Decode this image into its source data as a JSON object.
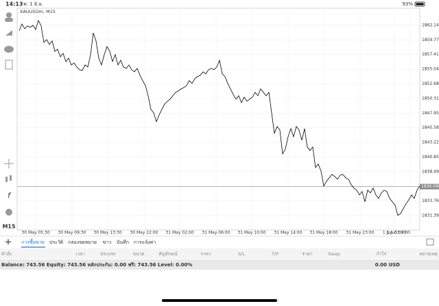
{
  "status_bar": {
    "time": "14:13",
    "date": "พ. 1 มิ.ย.",
    "battery": "93%"
  },
  "chart_data": {
    "type": "line",
    "symbol_label": "XAUUSDm, M15",
    "timeframe": "M15",
    "color": "#000000",
    "grid": true,
    "values": [
      1861.26,
      1862.36,
      1861.59,
      1862.03,
      1861.81,
      1862.14,
      1861.48,
      1862.91,
      1862.03,
      1859.38,
      1859.82,
      1859.05,
      1859.6,
      1857.94,
      1858.27,
      1857.06,
      1857.61,
      1856.28,
      1856.84,
      1855.73,
      1856.06,
      1855.4,
      1854.96,
      1854.85,
      1855.73,
      1855.4,
      1857.39,
      1860.92,
      1859.6,
      1856.84,
      1855.73,
      1857.39,
      1858.71,
      1857.94,
      1856.28,
      1857.39,
      1855.73,
      1856.5,
      1855.4,
      1855.18,
      1855.73,
      1854.96,
      1854.63,
      1855.18,
      1854.07,
      1853.19,
      1852.42,
      1850.76,
      1848.55,
      1848.0,
      1846.56,
      1847.66,
      1848.55,
      1849.43,
      1849.87,
      1850.21,
      1850.76,
      1851.31,
      1851.53,
      1851.86,
      1852.08,
      1852.42,
      1853.19,
      1852.75,
      1853.52,
      1853.85,
      1854.07,
      1854.63,
      1854.29,
      1854.96,
      1855.18,
      1854.96,
      1855.4,
      1856.5,
      1854.29,
      1853.85,
      1852.75,
      1851.86,
      1850.98,
      1850.21,
      1850.76,
      1849.65,
      1850.54,
      1849.87,
      1850.21,
      1850.54,
      1851.31,
      1850.76,
      1851.86,
      1851.31,
      1850.76,
      1851.31,
      1848.0,
      1844.68,
      1845.79,
      1845.23,
      1841.37,
      1842.14,
      1844.13,
      1845.45,
      1844.13,
      1845.79,
      1845.23,
      1843.58,
      1845.45,
      1842.47,
      1841.92,
      1842.47,
      1839.16,
      1839.71,
      1838.6,
      1836.17,
      1836.95,
      1837.5,
      1838.05,
      1837.72,
      1837.28,
      1837.94,
      1838.05,
      1837.5,
      1837.28,
      1836.39,
      1835.84,
      1835.51,
      1834.74,
      1835.29,
      1833.63,
      1835.51,
      1835.07,
      1835.84,
      1834.74,
      1834.18,
      1835.07,
      1835.51,
      1835.29,
      1834.18,
      1833.63,
      1833.08,
      1831.42,
      1831.75,
      1832.53,
      1833.3,
      1833.96,
      1834.74,
      1834.18,
      1835.51,
      1836.17
    ],
    "xlim": [
      0,
      146
    ],
    "xticks": [
      {
        "value": 6,
        "label": "30 May 05:30"
      },
      {
        "value": 19.25,
        "label": "30 May 09:30"
      },
      {
        "value": 32.25,
        "label": "30 May 13:30"
      },
      {
        "value": 45.5,
        "label": "30 May 22:00"
      },
      {
        "value": 58.5,
        "label": "31 May 02:00"
      },
      {
        "value": 71.75,
        "label": "31 May 06:00"
      },
      {
        "value": 84.75,
        "label": "31 May 10:00"
      },
      {
        "value": 98,
        "label": "31 May 14:00"
      },
      {
        "value": 111,
        "label": "31 May 18:00"
      },
      {
        "value": 124.25,
        "label": "31 May 23:00"
      },
      {
        "value": 136.75,
        "label": "1 Jun 03:00"
      },
      {
        "value": 142.5,
        "label": "1 Jun 07:00"
      }
    ],
    "ylim": [
      1829.18,
      1864.9
    ],
    "yticks": [
      {
        "value": 1862.14,
        "label": "1862.140"
      },
      1859.775,
      {
        "value": 1857.41,
        "label": "1857.410"
      },
      1855.045,
      {
        "value": 1852.68,
        "label": "1852.680"
      },
      1850.315,
      {
        "value": 1847.95,
        "label": "1847.950"
      },
      1845.585,
      {
        "value": 1843.22,
        "label": "1843.220"
      },
      1840.855,
      {
        "value": 1838.49,
        "label": "1838.490"
      },
      {
        "value": 1833.76,
        "label": "1833.760"
      },
      1831.395
    ],
    "current_price": {
      "value": 1836.08,
      "label": "1836.080"
    }
  },
  "tabs": [
    "การซื้อขาย",
    "ประวัติ",
    "กล่องจดหมาย",
    "ข่าว",
    "บันทึก",
    "การแจ้งค่า"
  ],
  "columns": [
    "คำสั่ง",
    "เวลา",
    "ประเภท",
    "ขนาด",
    "สัญลักษณ์",
    "ราคา",
    "S/L",
    "T/P",
    "ราคา",
    "Swap",
    "กำไร",
    "หมายเหตุ"
  ],
  "account": {
    "summary": "Balance: 743.56 Equity: 743.56 หลักประกัน: 0.00 ฟรี: 743.56 Level: 0.00%",
    "profit": "0.00 USD"
  }
}
